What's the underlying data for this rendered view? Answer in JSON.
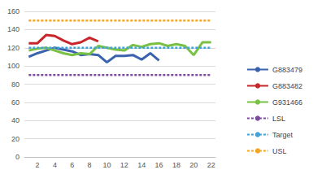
{
  "chart_data": {
    "type": "line",
    "categories": [
      null,
      "2",
      null,
      "4",
      null,
      "6",
      null,
      "8",
      null,
      "10",
      null,
      "12",
      null,
      "14",
      null,
      "16",
      null,
      "18",
      null,
      "20",
      null,
      "22"
    ],
    "series": [
      {
        "name": "G883479",
        "color": "#3b62ad",
        "line_style": "solid",
        "values": [
          110,
          114,
          117,
          120,
          118,
          116,
          112,
          113,
          112,
          104,
          111,
          111,
          112,
          107,
          114,
          106,
          null,
          null,
          null,
          null,
          null,
          null
        ]
      },
      {
        "name": "G883482",
        "color": "#c8262b",
        "line_style": "solid",
        "values": [
          125,
          125,
          134,
          133,
          128,
          124,
          126,
          131,
          127,
          null,
          null,
          null,
          null,
          null,
          null,
          null,
          null,
          null,
          null,
          null,
          null,
          null
        ]
      },
      {
        "name": "G931466",
        "color": "#79c143",
        "line_style": "solid",
        "values": [
          117,
          119,
          120,
          117,
          114,
          112,
          114,
          113,
          122,
          120,
          118,
          117,
          123,
          121,
          124,
          125,
          122,
          124,
          122,
          112,
          126,
          126
        ]
      },
      {
        "name": "LSL",
        "color": "#7f4b9e",
        "line_style": "dashed",
        "values": [
          90,
          90,
          90,
          90,
          90,
          90,
          90,
          90,
          90,
          90,
          90,
          90,
          90,
          90,
          90,
          90,
          90,
          90,
          90,
          90,
          90,
          90
        ]
      },
      {
        "name": "Target",
        "color": "#3fa2d9",
        "line_style": "dashed",
        "values": [
          120,
          120,
          120,
          120,
          120,
          120,
          120,
          120,
          120,
          120,
          120,
          120,
          120,
          120,
          120,
          120,
          120,
          120,
          120,
          120,
          120,
          120
        ]
      },
      {
        "name": "USL",
        "color": "#f6a623",
        "line_style": "dashed",
        "values": [
          150,
          150,
          150,
          150,
          150,
          150,
          150,
          150,
          150,
          150,
          150,
          150,
          150,
          150,
          150,
          150,
          150,
          150,
          150,
          150,
          150,
          150
        ]
      }
    ],
    "ylim": [
      0,
      160
    ],
    "yticks": [
      0,
      20,
      40,
      60,
      80,
      100,
      120,
      140,
      160
    ],
    "grid": true,
    "legend": "right"
  }
}
